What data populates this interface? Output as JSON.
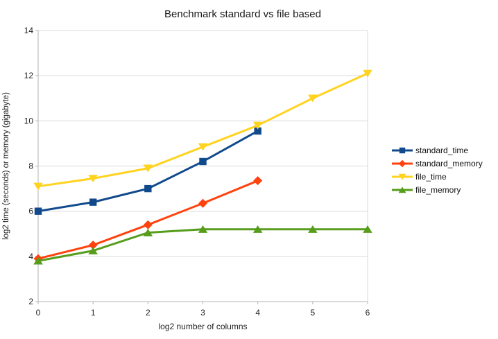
{
  "chart_data": {
    "type": "line",
    "title": "Benchmark standard vs file based",
    "xlabel": "log2 number of columns",
    "ylabel": "log2 time (seconds) or memory (gigabyte)",
    "xlim": [
      0,
      6
    ],
    "ylim": [
      2,
      14
    ],
    "xticks": [
      0,
      1,
      2,
      3,
      4,
      5,
      6
    ],
    "yticks": [
      2,
      4,
      6,
      8,
      10,
      12,
      14
    ],
    "grid": "horizontal-on",
    "legend_position": "right",
    "series": [
      {
        "name": "standard_time",
        "color": "#114A8C",
        "marker": "square",
        "x": [
          0,
          1,
          2,
          3,
          4
        ],
        "y": [
          6.0,
          6.4,
          7.0,
          8.2,
          9.55
        ]
      },
      {
        "name": "standard_memory",
        "color": "#FF420E",
        "marker": "diamond",
        "x": [
          0,
          1,
          2,
          3,
          4
        ],
        "y": [
          3.9,
          4.5,
          5.4,
          6.35,
          7.35
        ]
      },
      {
        "name": "file_time",
        "color": "#FFD320",
        "marker": "triangle-down",
        "x": [
          0,
          1,
          2,
          3,
          4,
          5,
          6
        ],
        "y": [
          7.1,
          7.45,
          7.9,
          8.85,
          9.8,
          11.0,
          12.1
        ]
      },
      {
        "name": "file_memory",
        "color": "#579D1C",
        "marker": "triangle-up",
        "x": [
          0,
          1,
          2,
          3,
          4,
          5,
          6
        ],
        "y": [
          3.8,
          4.25,
          5.05,
          5.2,
          5.2,
          5.2,
          5.2
        ]
      }
    ],
    "colors": {
      "gridline": "#D9D9D9",
      "axis": "#B3B3B3",
      "tick_text": "#222222",
      "background": "#FFFFFF"
    }
  }
}
